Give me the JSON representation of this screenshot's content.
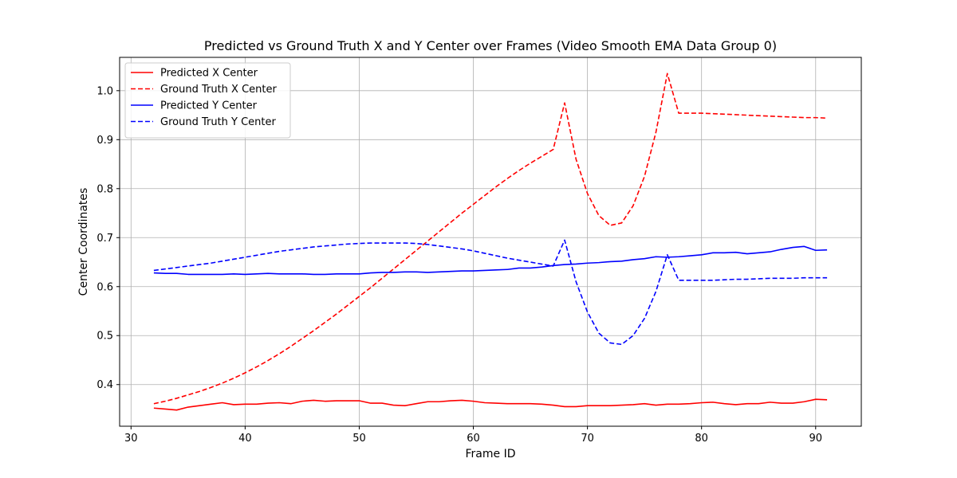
{
  "chart_data": {
    "type": "line",
    "title": "Predicted vs Ground Truth X and Y Center over Frames (Video Smooth EMA Data Group 0)",
    "xlabel": "Frame ID",
    "ylabel": "Center Coordinates",
    "xlim": [
      29,
      94
    ],
    "ylim": [
      0.315,
      1.068
    ],
    "xticks": [
      30,
      40,
      50,
      60,
      70,
      80,
      90
    ],
    "yticks": [
      0.4,
      0.5,
      0.6,
      0.7,
      0.8,
      0.9,
      1.0
    ],
    "grid": true,
    "legend_position": "top-left",
    "x": [
      32,
      33,
      34,
      35,
      36,
      37,
      38,
      39,
      40,
      41,
      42,
      43,
      44,
      45,
      46,
      47,
      48,
      49,
      50,
      51,
      52,
      53,
      54,
      55,
      56,
      57,
      58,
      59,
      60,
      61,
      62,
      63,
      64,
      65,
      66,
      67,
      68,
      69,
      70,
      71,
      72,
      73,
      74,
      75,
      76,
      77,
      78,
      79,
      80,
      81,
      82,
      83,
      84,
      85,
      86,
      87,
      88,
      89,
      90,
      91
    ],
    "series": [
      {
        "name": "Predicted X Center",
        "color": "#ff0000",
        "dash": "solid",
        "values": [
          0.352,
          0.35,
          0.348,
          0.354,
          0.357,
          0.36,
          0.363,
          0.359,
          0.36,
          0.36,
          0.362,
          0.363,
          0.361,
          0.366,
          0.368,
          0.366,
          0.367,
          0.367,
          0.367,
          0.362,
          0.362,
          0.358,
          0.357,
          0.361,
          0.365,
          0.365,
          0.367,
          0.368,
          0.366,
          0.363,
          0.362,
          0.361,
          0.361,
          0.361,
          0.36,
          0.358,
          0.355,
          0.355,
          0.357,
          0.357,
          0.357,
          0.358,
          0.359,
          0.361,
          0.358,
          0.36,
          0.36,
          0.361,
          0.363,
          0.364,
          0.361,
          0.359,
          0.361,
          0.361,
          0.364,
          0.362,
          0.362,
          0.365,
          0.37,
          0.369
        ]
      },
      {
        "name": "Ground Truth X Center",
        "color": "#ff0000",
        "dash": "dashed",
        "values": [
          0.361,
          0.366,
          0.372,
          0.379,
          0.386,
          0.394,
          0.403,
          0.413,
          0.424,
          0.436,
          0.449,
          0.463,
          0.478,
          0.494,
          0.51,
          0.527,
          0.544,
          0.562,
          0.58,
          0.598,
          0.617,
          0.636,
          0.655,
          0.674,
          0.693,
          0.712,
          0.731,
          0.75,
          0.768,
          0.786,
          0.804,
          0.821,
          0.837,
          0.852,
          0.866,
          0.88,
          0.975,
          0.86,
          0.79,
          0.745,
          0.725,
          0.73,
          0.765,
          0.825,
          0.915,
          1.035,
          0.954,
          0.954,
          0.954,
          0.953,
          0.952,
          0.951,
          0.95,
          0.949,
          0.948,
          0.947,
          0.946,
          0.945,
          0.945,
          0.944
        ]
      },
      {
        "name": "Predicted Y Center",
        "color": "#0000ff",
        "dash": "solid",
        "values": [
          0.628,
          0.627,
          0.627,
          0.625,
          0.625,
          0.625,
          0.625,
          0.626,
          0.625,
          0.626,
          0.627,
          0.626,
          0.626,
          0.626,
          0.625,
          0.625,
          0.626,
          0.626,
          0.626,
          0.628,
          0.629,
          0.629,
          0.63,
          0.63,
          0.629,
          0.63,
          0.631,
          0.632,
          0.632,
          0.633,
          0.634,
          0.635,
          0.638,
          0.638,
          0.64,
          0.643,
          0.645,
          0.646,
          0.648,
          0.649,
          0.651,
          0.652,
          0.655,
          0.657,
          0.661,
          0.66,
          0.661,
          0.663,
          0.665,
          0.669,
          0.669,
          0.67,
          0.667,
          0.669,
          0.671,
          0.676,
          0.68,
          0.682,
          0.674,
          0.675
        ]
      },
      {
        "name": "Ground Truth Y Center",
        "color": "#0000ff",
        "dash": "dashed",
        "values": [
          0.633,
          0.636,
          0.639,
          0.642,
          0.645,
          0.648,
          0.652,
          0.656,
          0.66,
          0.664,
          0.668,
          0.672,
          0.675,
          0.678,
          0.681,
          0.683,
          0.685,
          0.687,
          0.688,
          0.689,
          0.689,
          0.689,
          0.689,
          0.688,
          0.686,
          0.683,
          0.68,
          0.677,
          0.673,
          0.668,
          0.663,
          0.658,
          0.654,
          0.65,
          0.646,
          0.642,
          0.695,
          0.61,
          0.548,
          0.505,
          0.485,
          0.482,
          0.5,
          0.535,
          0.59,
          0.665,
          0.613,
          0.613,
          0.613,
          0.613,
          0.614,
          0.615,
          0.615,
          0.616,
          0.617,
          0.617,
          0.617,
          0.618,
          0.618,
          0.618
        ]
      }
    ]
  }
}
